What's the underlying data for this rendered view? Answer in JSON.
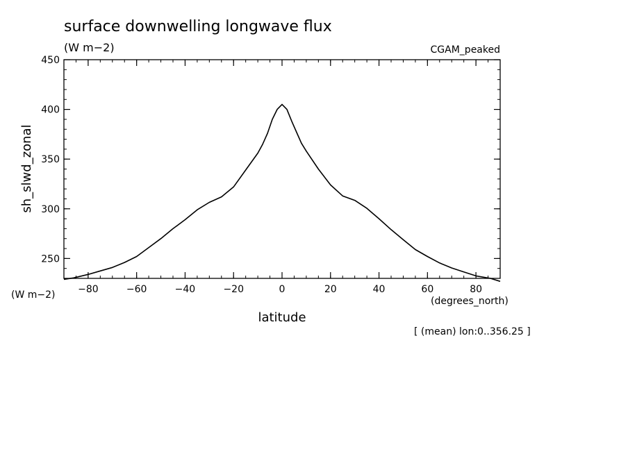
{
  "chart_data": {
    "type": "line",
    "title": "surface downwelling longwave flux",
    "units": "(W m−2)",
    "dataset": "CGAM_peaked",
    "ylabel": "sh_slwd_zonal",
    "yunits": "(W m−2)",
    "xlabel": "latitude",
    "xunits": "(degrees_north)",
    "footnote": "[ (mean) lon:0..356.25 ]",
    "xlim": [
      -90,
      90
    ],
    "ylim": [
      230,
      450
    ],
    "xticks": [
      -80,
      -60,
      -40,
      -20,
      0,
      20,
      40,
      60,
      80
    ],
    "xtick_labels": [
      "−80",
      "−60",
      "−40",
      "−20",
      "0",
      "20",
      "40",
      "60",
      "80"
    ],
    "yticks": [
      250,
      300,
      350,
      400,
      450
    ],
    "ytick_labels": [
      "250",
      "300",
      "350",
      "400",
      "450"
    ],
    "grid": false,
    "series": [
      {
        "x": [
          -90,
          -86,
          -80,
          -75,
          -70,
          -65,
          -60,
          -55,
          -50,
          -45,
          -40,
          -35,
          -30,
          -25,
          -20,
          -15,
          -10,
          -8,
          -6,
          -4,
          -2,
          0,
          2,
          4,
          6,
          8,
          10,
          15,
          20,
          25,
          30,
          35,
          40,
          45,
          50,
          55,
          60,
          65,
          70,
          75,
          80,
          86,
          90
        ],
        "y": [
          229,
          230.5,
          234,
          237.5,
          241,
          246,
          252,
          261,
          270,
          280,
          289,
          299,
          306.5,
          312,
          322,
          339,
          356,
          365,
          376,
          390,
          400,
          405,
          400,
          388,
          377,
          366,
          358,
          340,
          324,
          313,
          308.5,
          300.5,
          290,
          279,
          269,
          259,
          252,
          245.5,
          240.5,
          236.5,
          232.5,
          230,
          227
        ]
      }
    ]
  }
}
